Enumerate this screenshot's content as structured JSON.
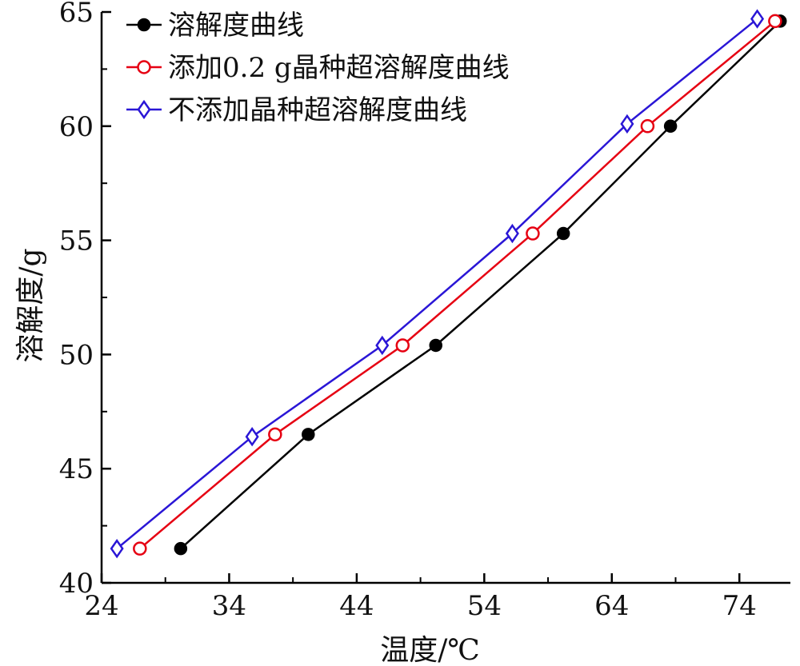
{
  "chart_data": {
    "type": "line",
    "xlabel": "温度/℃",
    "ylabel": "溶解度/g",
    "xlim": [
      24,
      78
    ],
    "ylim": [
      40,
      65
    ],
    "xticks": [
      24,
      34,
      44,
      54,
      64,
      74
    ],
    "yticks": [
      40,
      45,
      50,
      55,
      60,
      65
    ],
    "grid": false,
    "legend_position": "top-left",
    "series": [
      {
        "name": "溶解度曲线",
        "color": "#000000",
        "marker": "filled-circle",
        "x": [
          30.2,
          40.2,
          50.2,
          60.2,
          68.6,
          77.2
        ],
        "y": [
          41.5,
          46.5,
          50.4,
          55.3,
          60.0,
          64.6
        ]
      },
      {
        "name": "添加0.2 g晶种超溶解度曲线",
        "color": "#e60012",
        "marker": "open-circle",
        "x": [
          27.0,
          37.6,
          47.6,
          57.8,
          66.8,
          76.8
        ],
        "y": [
          41.5,
          46.5,
          50.4,
          55.3,
          60.0,
          64.6
        ]
      },
      {
        "name": "不添加晶种超溶解度曲线",
        "color": "#2a16d6",
        "marker": "open-diamond",
        "x": [
          25.2,
          35.8,
          46.0,
          56.2,
          65.2,
          75.4
        ],
        "y": [
          41.5,
          46.4,
          50.4,
          55.3,
          60.1,
          64.7
        ]
      }
    ]
  }
}
